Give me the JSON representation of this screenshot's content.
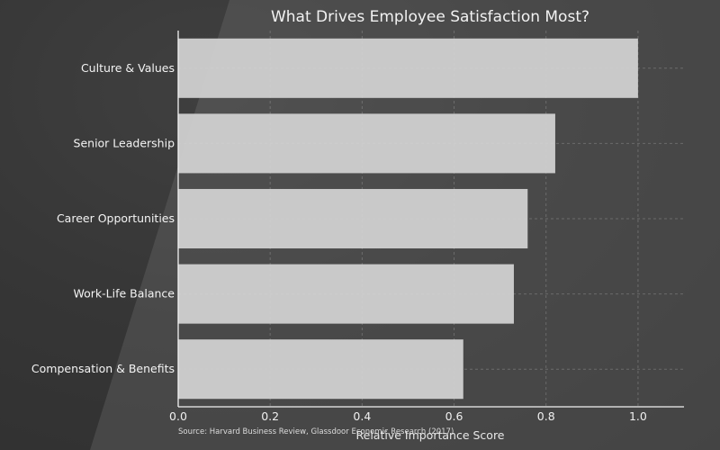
{
  "chart_data": {
    "type": "bar",
    "orientation": "horizontal",
    "title": "What Drives Employee Satisfaction Most?",
    "xlabel": "Relative Importance Score",
    "ylabel": "",
    "categories": [
      "Culture & Values",
      "Senior Leadership",
      "Career Opportunities",
      "Work-Life Balance",
      "Compensation & Benefits"
    ],
    "values": [
      1.0,
      0.82,
      0.76,
      0.73,
      0.62
    ],
    "xlim": [
      0,
      1.1
    ],
    "xticks": [
      0.0,
      0.2,
      0.4,
      0.6,
      0.8,
      1.0
    ],
    "xtick_labels": [
      "0.0",
      "0.2",
      "0.4",
      "0.6",
      "0.8",
      "1.0"
    ],
    "grid": true,
    "bar_color": "#d3d3d3",
    "source": "Source: Harvard Business Review, Glassdoor Economic Research (2017)"
  }
}
